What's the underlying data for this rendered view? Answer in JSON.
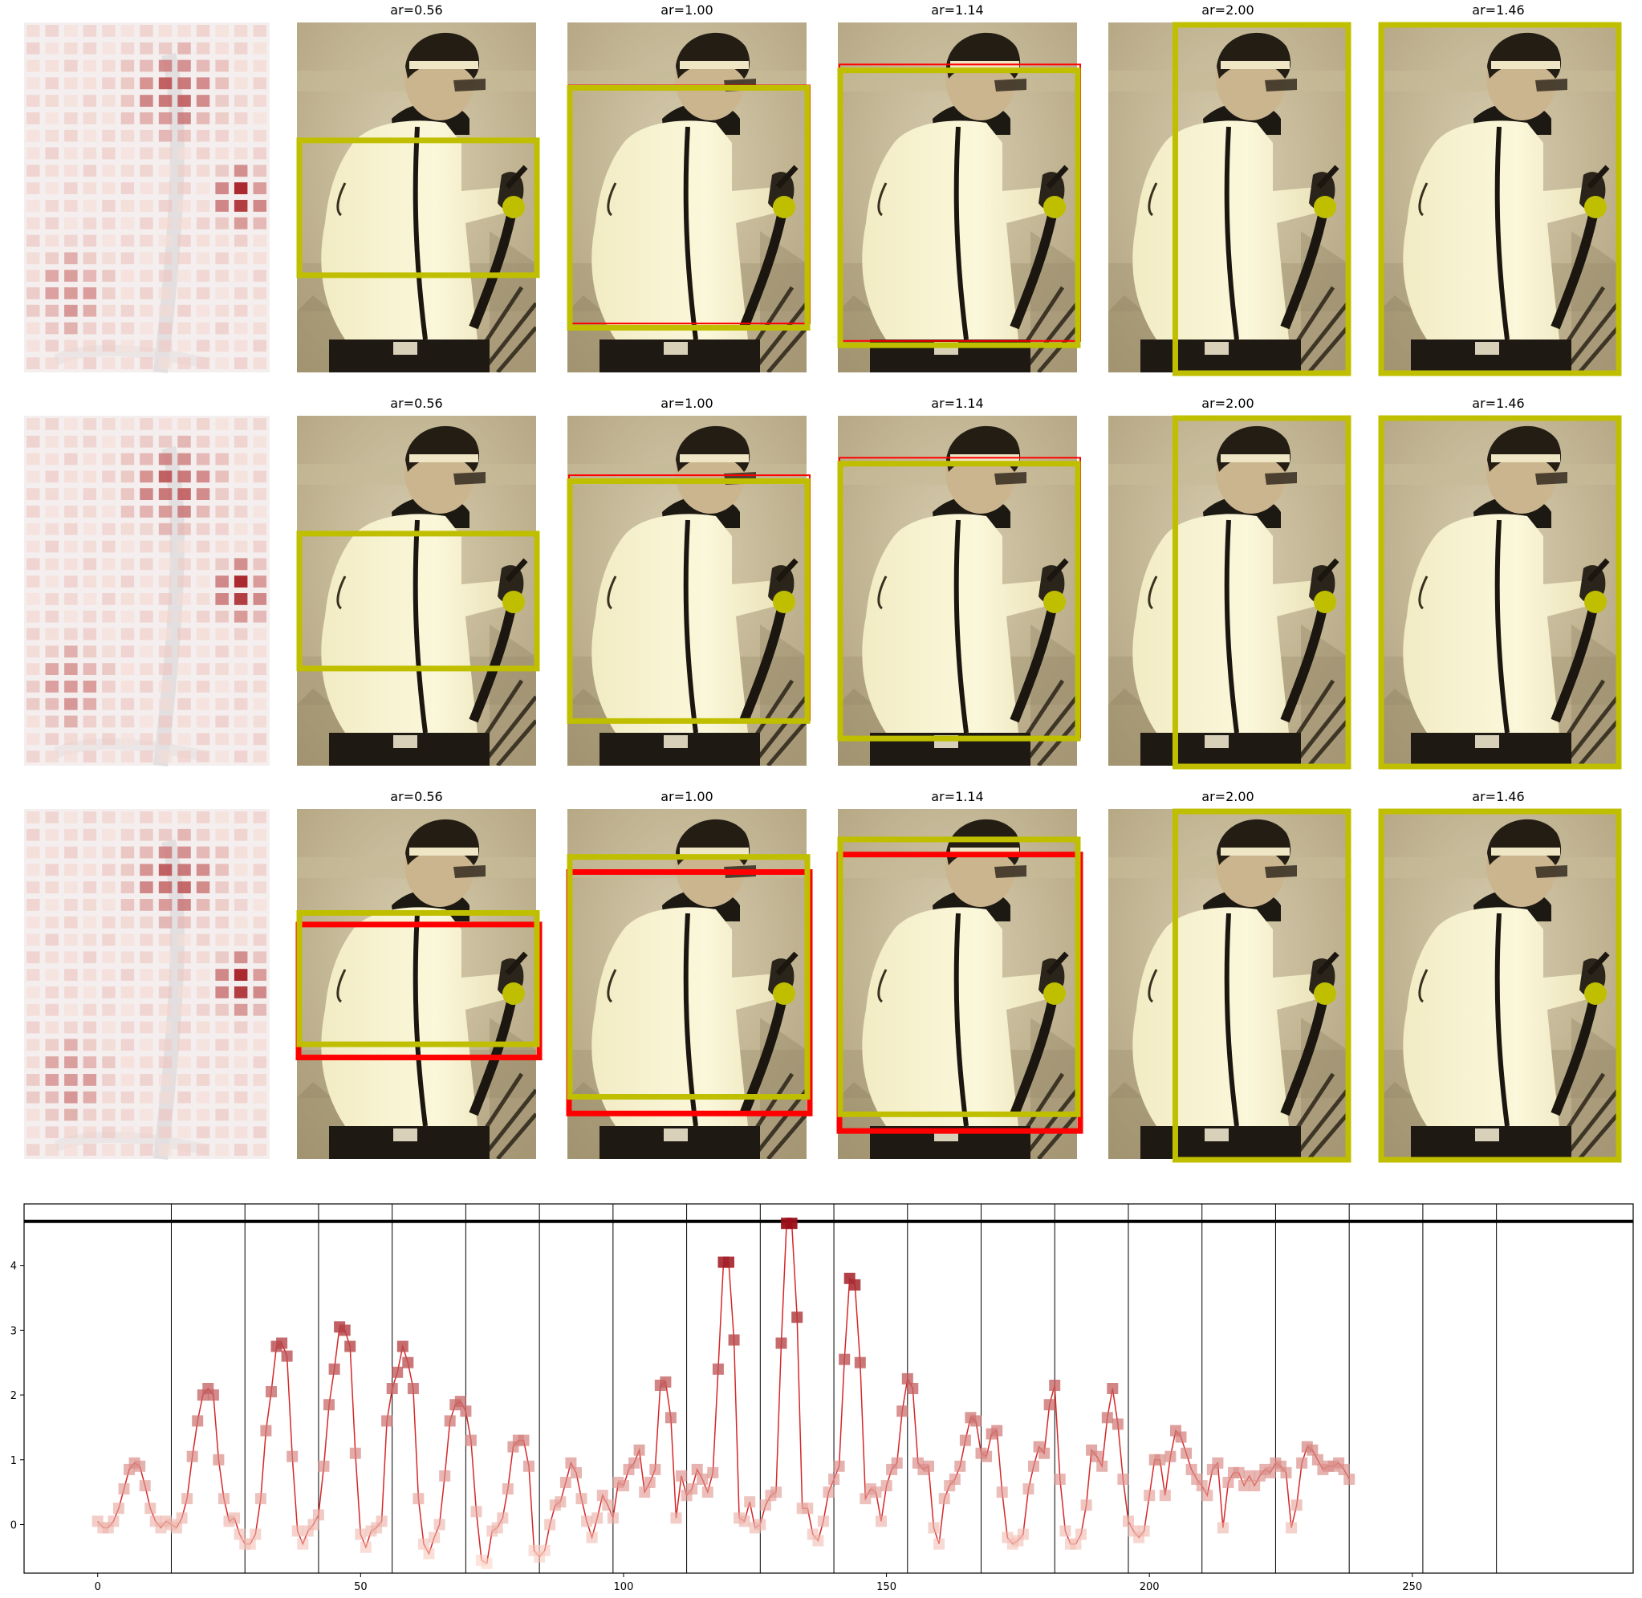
{
  "figure": {
    "rows": [
      {
        "titles": [
          "ar=0.56",
          "ar=1.00",
          "ar=1.14",
          "ar=2.00",
          "ar=1.46"
        ]
      },
      {
        "titles": [
          "ar=0.56",
          "ar=1.00",
          "ar=1.14",
          "ar=2.00",
          "ar=1.46"
        ]
      },
      {
        "titles": [
          "ar=0.56",
          "ar=1.00",
          "ar=1.14",
          "ar=2.00",
          "ar=1.46"
        ]
      }
    ],
    "colors": {
      "crop_box": "#bfbf00",
      "reference_box": "#ff0000",
      "sepia_light": "#f6f1c8",
      "sepia_dark": "#3a3020",
      "heat_low": "#fde9e1",
      "heat_high": "#a1161c"
    }
  },
  "chart_data": {
    "type": "line",
    "title": "",
    "xlabel": "",
    "ylabel": "",
    "xlim": [
      -14,
      292
    ],
    "ylim": [
      -0.75,
      4.95
    ],
    "xticks": [
      0,
      50,
      100,
      150,
      200,
      250
    ],
    "yticks": [
      0,
      1,
      2,
      3,
      4
    ],
    "segment_boundaries": [
      14,
      28,
      42,
      56,
      70,
      84,
      98,
      112,
      126,
      140,
      154,
      168,
      182,
      196,
      210,
      224,
      238,
      252,
      266
    ],
    "reference_line_y": 4.68,
    "series": [
      {
        "values": [
          0.05,
          -0.05,
          -0.05,
          0.05,
          0.25,
          0.55,
          0.85,
          0.95,
          0.9,
          0.6,
          0.25,
          0.05,
          -0.05,
          0.05,
          0.0,
          -0.05,
          0.1,
          0.4,
          1.05,
          1.6,
          2.0,
          2.1,
          2.0,
          1.0,
          0.4,
          0.05,
          0.1,
          -0.15,
          -0.3,
          -0.3,
          -0.15,
          0.4,
          1.45,
          2.05,
          2.75,
          2.8,
          2.6,
          1.05,
          -0.1,
          -0.3,
          -0.1,
          0.0,
          0.15,
          0.9,
          1.85,
          2.4,
          3.05,
          3.0,
          2.75,
          1.1,
          -0.15,
          -0.35,
          -0.1,
          -0.05,
          0.05,
          1.6,
          2.1,
          2.35,
          2.75,
          2.5,
          2.1,
          0.4,
          -0.3,
          -0.45,
          -0.2,
          0.0,
          0.75,
          1.6,
          1.85,
          1.9,
          1.75,
          1.3,
          0.2,
          -0.55,
          -0.6,
          -0.1,
          -0.05,
          0.1,
          0.55,
          1.2,
          1.3,
          1.3,
          0.9,
          -0.4,
          -0.5,
          -0.4,
          0.0,
          0.3,
          0.35,
          0.65,
          0.95,
          0.8,
          0.4,
          0.05,
          -0.2,
          0.1,
          0.45,
          0.3,
          0.1,
          0.65,
          0.6,
          0.85,
          0.95,
          1.15,
          0.5,
          0.65,
          0.85,
          2.15,
          2.2,
          1.65,
          0.1,
          0.75,
          0.45,
          0.55,
          0.85,
          0.7,
          0.5,
          0.8,
          2.4,
          4.05,
          4.05,
          2.85,
          0.1,
          0.05,
          0.35,
          -0.05,
          0.0,
          0.3,
          0.45,
          0.5,
          2.8,
          4.65,
          4.65,
          3.2,
          0.25,
          0.25,
          -0.15,
          -0.25,
          0.05,
          0.5,
          0.7,
          0.9,
          2.55,
          3.8,
          3.7,
          2.5,
          0.4,
          0.55,
          0.5,
          0.05,
          0.6,
          0.85,
          0.95,
          1.75,
          2.25,
          2.1,
          0.95,
          0.85,
          0.9,
          -0.05,
          -0.3,
          0.4,
          0.6,
          0.7,
          0.9,
          1.3,
          1.65,
          1.6,
          1.1,
          1.05,
          1.4,
          1.45,
          0.5,
          -0.2,
          -0.3,
          -0.25,
          -0.15,
          0.55,
          0.9,
          1.2,
          1.1,
          1.85,
          2.15,
          0.7,
          -0.1,
          -0.3,
          -0.3,
          -0.15,
          0.3,
          1.15,
          1.05,
          0.9,
          1.65,
          2.1,
          1.55,
          0.7,
          0.05,
          -0.1,
          -0.2,
          -0.1,
          0.45,
          1.0,
          1.0,
          0.45,
          1.05,
          1.45,
          1.35,
          1.1,
          0.85,
          0.7,
          0.6,
          0.45,
          0.85,
          0.95,
          -0.05,
          0.65,
          0.8,
          0.8,
          0.6,
          0.75,
          0.6,
          0.75,
          0.85,
          0.8,
          0.95,
          0.9,
          0.8,
          -0.05,
          0.3,
          0.95,
          1.2,
          1.15,
          1.0,
          0.85,
          0.9,
          0.9,
          0.95,
          0.85,
          0.7
        ]
      }
    ]
  }
}
